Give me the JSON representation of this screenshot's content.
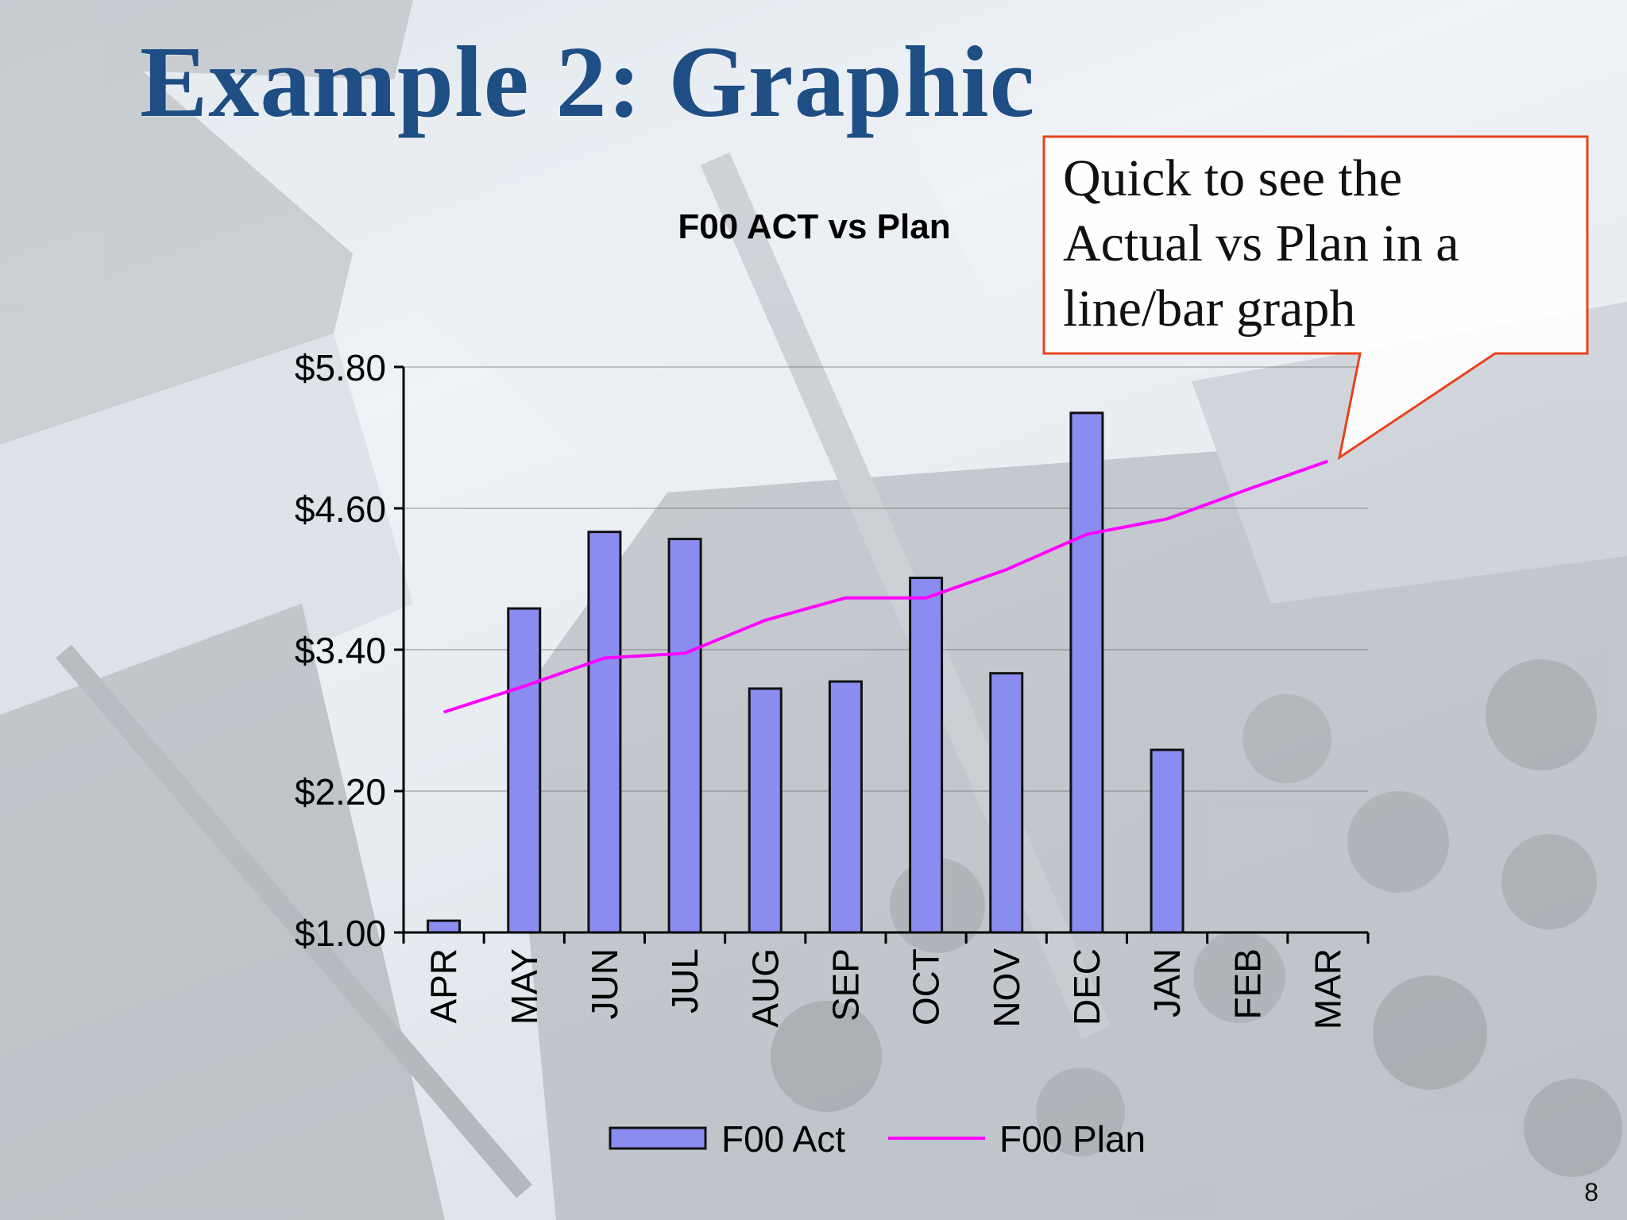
{
  "slide": {
    "title": "Example 2: Graphic",
    "callout": "Quick to see the\nActual vs Plan in a\nline/bar graph",
    "page_number": "8"
  },
  "colors": {
    "title": "#1f4e84",
    "bar_fill": "#8a8cf0",
    "bar_stroke": "#111111",
    "plan_line": "#ff00ff",
    "callout_border": "#e8431c"
  },
  "chart_data": {
    "type": "bar",
    "title": "F00 ACT vs Plan",
    "categories": [
      "APR",
      "MAY",
      "JUN",
      "JUL",
      "AUG",
      "SEP",
      "OCT",
      "NOV",
      "DEC",
      "JAN",
      "FEB",
      "MAR"
    ],
    "series": [
      {
        "name": "F00 Act",
        "type": "bar",
        "values": [
          1.1,
          3.75,
          4.4,
          4.34,
          3.07,
          3.13,
          4.01,
          3.2,
          5.41,
          2.55,
          null,
          null
        ]
      },
      {
        "name": "F00 Plan",
        "type": "line",
        "values": [
          2.87,
          3.09,
          3.33,
          3.37,
          3.65,
          3.84,
          3.84,
          4.08,
          4.38,
          4.51,
          4.76,
          5.0
        ]
      }
    ],
    "yticks": [
      "$1.00",
      "$2.20",
      "$3.40",
      "$4.60",
      "$5.80"
    ],
    "ytick_values": [
      1.0,
      2.2,
      3.4,
      4.6,
      5.8
    ],
    "ylim": [
      1.0,
      5.8
    ],
    "grid": true,
    "legend_position": "bottom"
  }
}
